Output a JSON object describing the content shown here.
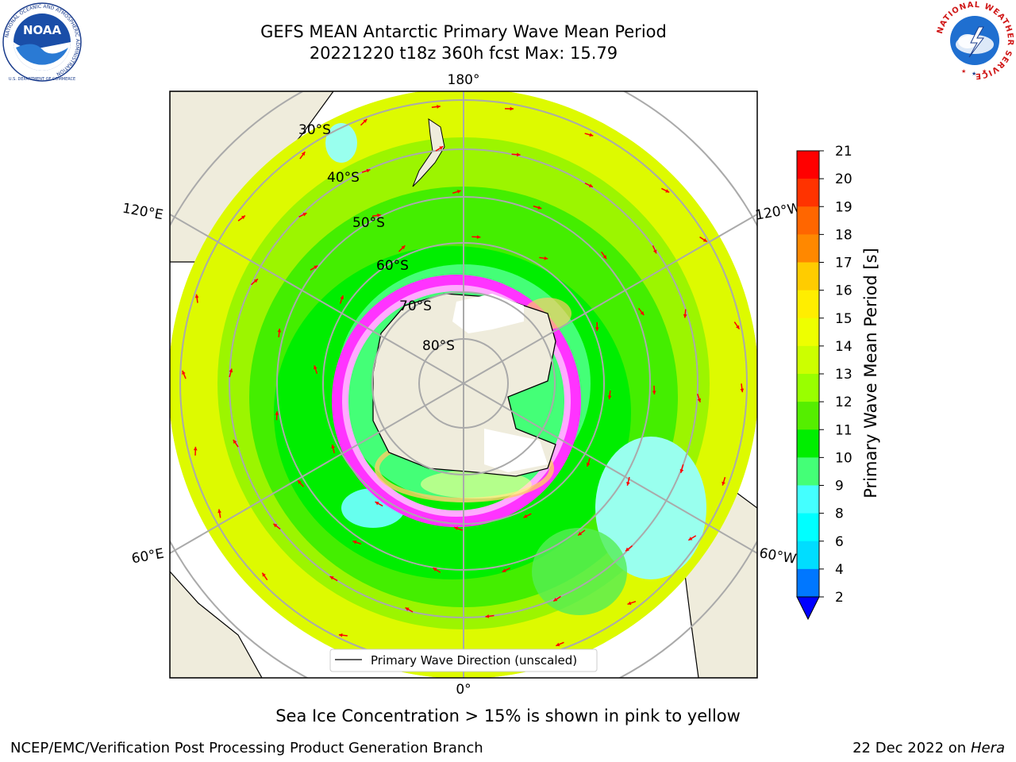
{
  "title": {
    "line1": "GEFS MEAN Antarctic Primary Wave Mean Period",
    "line2": "20221220 t18z 360h fcst   Max: 15.79"
  },
  "map": {
    "projection": "south-polar-stereographic",
    "longitude_labels": [
      "180°",
      "120°E",
      "120°W",
      "60°E",
      "60°W",
      "0°"
    ],
    "latitude_labels": [
      "30°S",
      "40°S",
      "50°S",
      "60°S",
      "70°S",
      "80°S"
    ],
    "legend_label": "Primary Wave Direction (unscaled)",
    "arrow_color": "#ff0000",
    "land_color": "#efecdc",
    "ice_colors": [
      "#ff33ff",
      "#ff99cc",
      "#ffcc66",
      "#ffff99"
    ]
  },
  "colorbar": {
    "label": "Primary Wave Mean Period [s]",
    "ticks": [
      "21",
      "20",
      "19",
      "18",
      "17",
      "16",
      "15",
      "14",
      "13",
      "12",
      "11",
      "10",
      "9",
      "8",
      "6",
      "4",
      "2"
    ],
    "colors": [
      "#ff0000",
      "#ff3300",
      "#ff6600",
      "#ff8800",
      "#ffaa00",
      "#ffcc00",
      "#ffee00",
      "#eeff00",
      "#ccff00",
      "#99ff00",
      "#55ee00",
      "#00ee00",
      "#44ff77",
      "#99ffee",
      "#44ffff",
      "#00ffff",
      "#00ddff",
      "#0077ff",
      "#0000ff"
    ]
  },
  "captions": {
    "ice_note": "Sea Ice Concentration > 15% is shown in pink to yellow",
    "footer_left": "NCEP/EMC/Verification Post Processing Product Generation Branch",
    "footer_date": "22 Dec 2022 on",
    "footer_machine": "Hera"
  },
  "logos": {
    "noaa": {
      "center_text": "NOAA",
      "ring_text": "NATIONAL OCEANIC AND ATMOSPHERIC ADMINISTRATION",
      "bottom_text": "U.S. DEPARTMENT OF COMMERCE"
    },
    "nws": {
      "ring_text": "NATIONAL WEATHER SERVICE"
    }
  }
}
